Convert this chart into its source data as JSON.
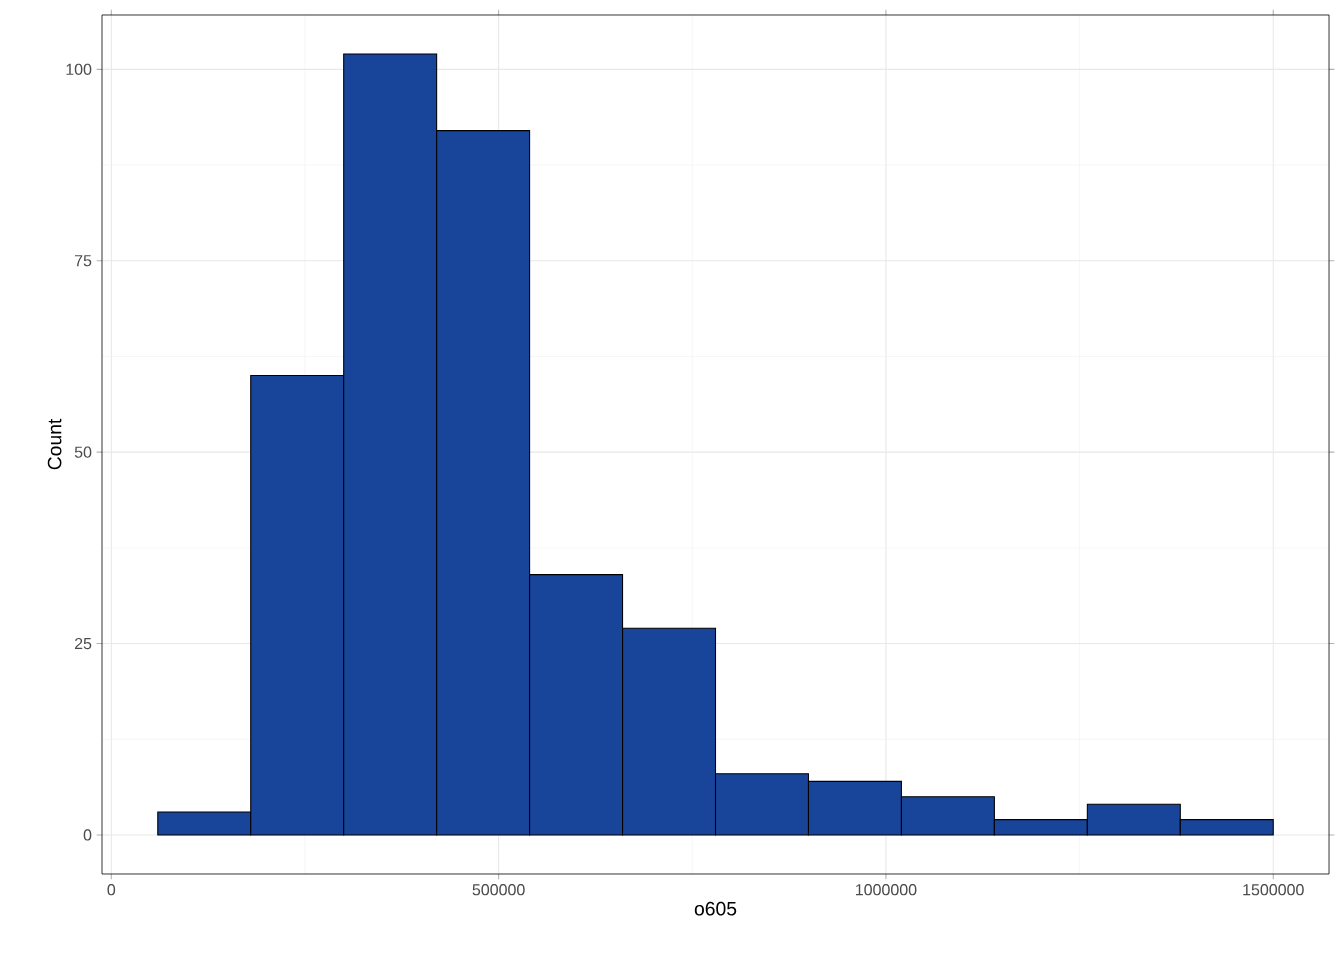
{
  "chart_data": {
    "type": "histogram",
    "xlabel": "o605",
    "ylabel": "Count",
    "bins": [
      60000,
      180000,
      300000,
      420000,
      540000,
      660000,
      780000,
      900000,
      1020000,
      1140000,
      1260000,
      1380000,
      1500000
    ],
    "values": [
      3,
      60,
      102,
      92,
      34,
      27,
      8,
      7,
      5,
      2,
      4,
      2
    ],
    "color": "#184499",
    "xlim": [
      -12000,
      1572000
    ],
    "ylim": [
      -5.1,
      107.1
    ],
    "xticks": [
      0,
      500000,
      1000000,
      1500000
    ],
    "yticks": [
      0,
      25,
      50,
      75,
      100
    ],
    "grid": true
  }
}
